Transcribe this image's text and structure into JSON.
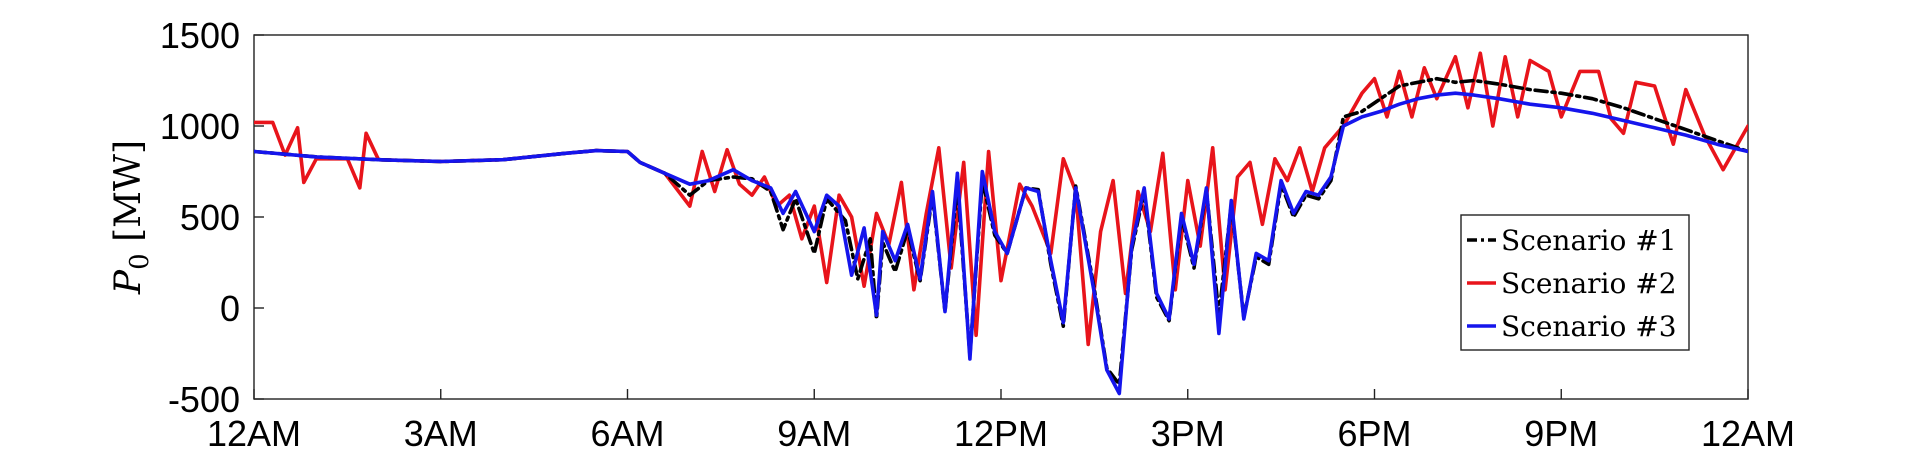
{
  "chart_data": {
    "type": "line",
    "ylabel": "P_0 [MW]",
    "ylabel_main": "P",
    "ylabel_sub": "0",
    "ylabel_unit": " [MW]",
    "xlabel": "",
    "x_ticks": [
      "12AM",
      "3AM",
      "6AM",
      "9AM",
      "12PM",
      "3PM",
      "6PM",
      "9PM",
      "12AM"
    ],
    "x_range_hours": [
      0,
      24
    ],
    "y_ticks": [
      1500,
      1000,
      500,
      0,
      -500
    ],
    "ylim": [
      -500,
      1500
    ],
    "grid": true,
    "legend_position": "lower-right",
    "series": [
      {
        "name": "Scenario #1",
        "color": "#000000",
        "dash": "dashdot",
        "points": [
          [
            0,
            860
          ],
          [
            1,
            830
          ],
          [
            2,
            815
          ],
          [
            3,
            805
          ],
          [
            4,
            815
          ],
          [
            5,
            850
          ],
          [
            5.5,
            865
          ],
          [
            6,
            860
          ],
          [
            6.2,
            800
          ],
          [
            6.6,
            740
          ],
          [
            7,
            620
          ],
          [
            7.3,
            700
          ],
          [
            7.7,
            720
          ],
          [
            8,
            710
          ],
          [
            8.3,
            640
          ],
          [
            8.5,
            430
          ],
          [
            8.7,
            600
          ],
          [
            9,
            300
          ],
          [
            9.2,
            600
          ],
          [
            9.5,
            480
          ],
          [
            9.7,
            160
          ],
          [
            9.9,
            380
          ],
          [
            10,
            -60
          ],
          [
            10.1,
            360
          ],
          [
            10.3,
            200
          ],
          [
            10.5,
            430
          ],
          [
            10.7,
            150
          ],
          [
            10.9,
            620
          ],
          [
            11.1,
            -20
          ],
          [
            11.3,
            680
          ],
          [
            11.5,
            -260
          ],
          [
            11.7,
            700
          ],
          [
            11.9,
            400
          ],
          [
            12.1,
            300
          ],
          [
            12.4,
            660
          ],
          [
            12.6,
            650
          ],
          [
            12.8,
            240
          ],
          [
            13,
            -100
          ],
          [
            13.2,
            670
          ],
          [
            13.5,
            100
          ],
          [
            13.7,
            -330
          ],
          [
            13.9,
            -420
          ],
          [
            14.1,
            320
          ],
          [
            14.3,
            640
          ],
          [
            14.5,
            60
          ],
          [
            14.7,
            -70
          ],
          [
            14.9,
            500
          ],
          [
            15.1,
            220
          ],
          [
            15.3,
            650
          ],
          [
            15.5,
            -40
          ],
          [
            15.7,
            570
          ],
          [
            15.9,
            -50
          ],
          [
            16.1,
            280
          ],
          [
            16.3,
            240
          ],
          [
            16.5,
            680
          ],
          [
            16.7,
            500
          ],
          [
            16.9,
            620
          ],
          [
            17.1,
            600
          ],
          [
            17.3,
            700
          ],
          [
            17.5,
            1050
          ],
          [
            17.8,
            1080
          ],
          [
            18.1,
            1150
          ],
          [
            18.4,
            1220
          ],
          [
            18.7,
            1240
          ],
          [
            19,
            1260
          ],
          [
            19.3,
            1240
          ],
          [
            19.6,
            1250
          ],
          [
            20,
            1230
          ],
          [
            20.5,
            1200
          ],
          [
            21,
            1180
          ],
          [
            21.5,
            1150
          ],
          [
            22,
            1100
          ],
          [
            22.5,
            1040
          ],
          [
            23,
            980
          ],
          [
            23.5,
            920
          ],
          [
            24,
            860
          ]
        ]
      },
      {
        "name": "Scenario #2",
        "color": "#e8141b",
        "dash": "solid",
        "points": [
          [
            0,
            1020
          ],
          [
            0.3,
            1020
          ],
          [
            0.5,
            840
          ],
          [
            0.7,
            990
          ],
          [
            0.8,
            690
          ],
          [
            1,
            820
          ],
          [
            1.5,
            820
          ],
          [
            1.7,
            660
          ],
          [
            1.8,
            960
          ],
          [
            2,
            815
          ],
          [
            3,
            805
          ],
          [
            4,
            815
          ],
          [
            5,
            850
          ],
          [
            5.5,
            865
          ],
          [
            6,
            860
          ],
          [
            6.2,
            800
          ],
          [
            6.6,
            740
          ],
          [
            7,
            560
          ],
          [
            7.2,
            860
          ],
          [
            7.4,
            640
          ],
          [
            7.6,
            870
          ],
          [
            7.8,
            680
          ],
          [
            8,
            620
          ],
          [
            8.2,
            720
          ],
          [
            8.4,
            560
          ],
          [
            8.6,
            620
          ],
          [
            8.8,
            380
          ],
          [
            9,
            560
          ],
          [
            9.2,
            140
          ],
          [
            9.4,
            620
          ],
          [
            9.6,
            500
          ],
          [
            9.8,
            120
          ],
          [
            10,
            520
          ],
          [
            10.2,
            350
          ],
          [
            10.4,
            690
          ],
          [
            10.6,
            100
          ],
          [
            10.8,
            520
          ],
          [
            11,
            880
          ],
          [
            11.2,
            220
          ],
          [
            11.4,
            800
          ],
          [
            11.6,
            -150
          ],
          [
            11.8,
            860
          ],
          [
            12,
            150
          ],
          [
            12.3,
            680
          ],
          [
            12.5,
            560
          ],
          [
            12.8,
            300
          ],
          [
            13,
            820
          ],
          [
            13.2,
            640
          ],
          [
            13.4,
            -200
          ],
          [
            13.6,
            420
          ],
          [
            13.8,
            700
          ],
          [
            14,
            80
          ],
          [
            14.2,
            640
          ],
          [
            14.4,
            420
          ],
          [
            14.6,
            850
          ],
          [
            14.8,
            100
          ],
          [
            15,
            700
          ],
          [
            15.2,
            340
          ],
          [
            15.4,
            880
          ],
          [
            15.6,
            100
          ],
          [
            15.8,
            720
          ],
          [
            16,
            800
          ],
          [
            16.2,
            460
          ],
          [
            16.4,
            820
          ],
          [
            16.6,
            700
          ],
          [
            16.8,
            880
          ],
          [
            17,
            640
          ],
          [
            17.2,
            880
          ],
          [
            17.5,
            1000
          ],
          [
            17.8,
            1180
          ],
          [
            18,
            1260
          ],
          [
            18.2,
            1050
          ],
          [
            18.4,
            1300
          ],
          [
            18.6,
            1050
          ],
          [
            18.8,
            1320
          ],
          [
            19,
            1150
          ],
          [
            19.3,
            1380
          ],
          [
            19.5,
            1100
          ],
          [
            19.7,
            1400
          ],
          [
            19.9,
            1000
          ],
          [
            20.1,
            1380
          ],
          [
            20.3,
            1050
          ],
          [
            20.5,
            1360
          ],
          [
            20.8,
            1300
          ],
          [
            21,
            1050
          ],
          [
            21.3,
            1300
          ],
          [
            21.6,
            1300
          ],
          [
            21.8,
            1040
          ],
          [
            22,
            960
          ],
          [
            22.2,
            1240
          ],
          [
            22.5,
            1220
          ],
          [
            22.8,
            900
          ],
          [
            23,
            1200
          ],
          [
            23.3,
            950
          ],
          [
            23.6,
            760
          ],
          [
            24,
            1000
          ]
        ]
      },
      {
        "name": "Scenario #3",
        "color": "#1515ec",
        "dash": "solid",
        "points": [
          [
            0,
            860
          ],
          [
            1,
            830
          ],
          [
            2,
            815
          ],
          [
            3,
            805
          ],
          [
            4,
            815
          ],
          [
            5,
            850
          ],
          [
            5.5,
            865
          ],
          [
            6,
            860
          ],
          [
            6.2,
            800
          ],
          [
            6.6,
            740
          ],
          [
            7,
            680
          ],
          [
            7.3,
            700
          ],
          [
            7.7,
            760
          ],
          [
            8,
            700
          ],
          [
            8.3,
            660
          ],
          [
            8.5,
            520
          ],
          [
            8.7,
            640
          ],
          [
            9,
            420
          ],
          [
            9.2,
            620
          ],
          [
            9.4,
            560
          ],
          [
            9.6,
            180
          ],
          [
            9.8,
            440
          ],
          [
            10,
            -40
          ],
          [
            10.1,
            420
          ],
          [
            10.3,
            260
          ],
          [
            10.5,
            460
          ],
          [
            10.7,
            160
          ],
          [
            10.9,
            640
          ],
          [
            11.1,
            -20
          ],
          [
            11.3,
            740
          ],
          [
            11.5,
            -280
          ],
          [
            11.7,
            750
          ],
          [
            11.9,
            420
          ],
          [
            12.1,
            300
          ],
          [
            12.4,
            660
          ],
          [
            12.6,
            640
          ],
          [
            12.8,
            260
          ],
          [
            13,
            -80
          ],
          [
            13.2,
            660
          ],
          [
            13.5,
            80
          ],
          [
            13.7,
            -340
          ],
          [
            13.9,
            -470
          ],
          [
            14.1,
            340
          ],
          [
            14.3,
            660
          ],
          [
            14.5,
            80
          ],
          [
            14.7,
            -60
          ],
          [
            14.9,
            520
          ],
          [
            15.1,
            240
          ],
          [
            15.3,
            660
          ],
          [
            15.5,
            -140
          ],
          [
            15.7,
            590
          ],
          [
            15.9,
            -60
          ],
          [
            16.1,
            300
          ],
          [
            16.3,
            260
          ],
          [
            16.5,
            700
          ],
          [
            16.7,
            520
          ],
          [
            16.9,
            640
          ],
          [
            17.1,
            620
          ],
          [
            17.3,
            720
          ],
          [
            17.5,
            1000
          ],
          [
            17.8,
            1050
          ],
          [
            18.1,
            1080
          ],
          [
            18.4,
            1120
          ],
          [
            18.7,
            1150
          ],
          [
            19,
            1170
          ],
          [
            19.3,
            1180
          ],
          [
            19.6,
            1170
          ],
          [
            20,
            1150
          ],
          [
            20.5,
            1120
          ],
          [
            21,
            1100
          ],
          [
            21.5,
            1070
          ],
          [
            22,
            1030
          ],
          [
            22.5,
            990
          ],
          [
            23,
            950
          ],
          [
            23.5,
            900
          ],
          [
            24,
            860
          ]
        ]
      }
    ]
  }
}
